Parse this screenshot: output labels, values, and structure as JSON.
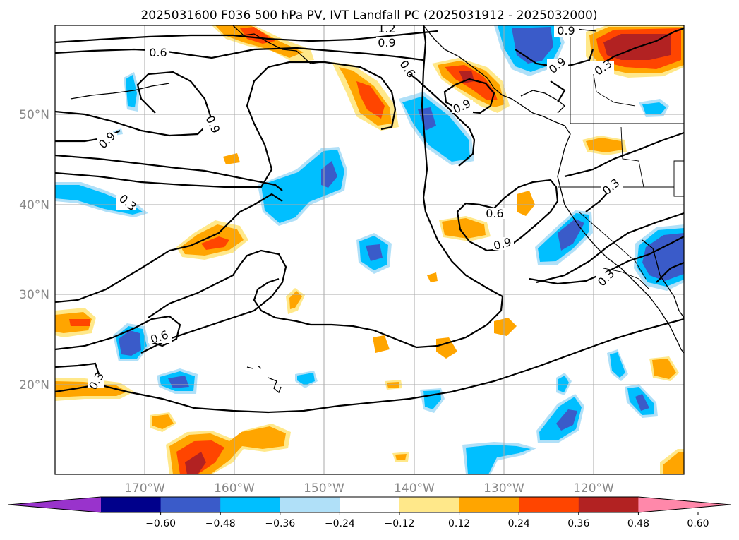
{
  "title": "2025031600 F036 500 hPa PV, IVT Landfall PC (2025031912 - 2025032000)",
  "lon_labels": [
    "170°W",
    "160°W",
    "150°W",
    "140°W",
    "130°W",
    "120°W"
  ],
  "lat_labels": [
    "50°N",
    "40°N",
    "30°N",
    "20°N"
  ],
  "colorbar": {
    "ticks": [
      "−0.60",
      "−0.48",
      "−0.36",
      "−0.24",
      "−0.12",
      "0.12",
      "0.24",
      "0.36",
      "0.48",
      "0.60"
    ],
    "colors": [
      "#9933cc",
      "#00008b",
      "#3a5bc9",
      "#00bfff",
      "#b0e0f8",
      "#ffffff",
      "#ffe88a",
      "#ffa500",
      "#ff4500",
      "#b22222",
      "#ff88aa"
    ]
  },
  "contour_labels": [
    "1.2",
    "0.9",
    "0.6",
    "0.6",
    "0.9",
    "0.9",
    "0.9",
    "0.9",
    "0.3",
    "0.9",
    "0.6",
    "0.9",
    "0.3",
    "0.6",
    "0.3",
    "0.3",
    "0.3"
  ]
}
